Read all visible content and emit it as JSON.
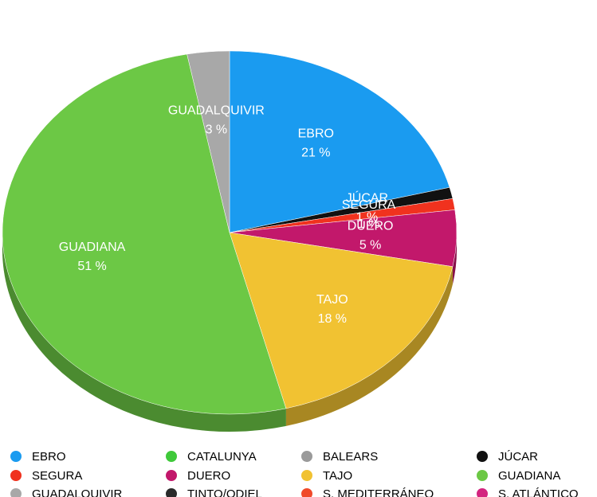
{
  "chart_data": {
    "type": "pie",
    "categories": [
      "EBRO",
      "CATALUNYA",
      "BALEARS",
      "JÚCAR",
      "SEGURA",
      "DUERO",
      "TAJO",
      "GUADIANA",
      "GUADALQUIVIR",
      "TINTO/ODIEL",
      "S. MEDITERRÁNEO",
      "S. ATLÁNTICO"
    ],
    "values": [
      21,
      0,
      0,
      1,
      1,
      5,
      18,
      51,
      3,
      0,
      0,
      0
    ],
    "value_labels": [
      "21 %",
      null,
      null,
      "1 %",
      "1 %",
      "5 %",
      "18 %",
      "51 %",
      "3 %",
      null,
      null,
      null
    ],
    "colors": [
      "#1a9bf0",
      "#3fc93a",
      "#9a9a9a",
      "#111111",
      "#f0321e",
      "#c2186b",
      "#f1c232",
      "#6cc845",
      "#a8a8a8",
      "#2a2a2a",
      "#f04a2a",
      "#d3247f"
    ],
    "legend": "bottom"
  }
}
